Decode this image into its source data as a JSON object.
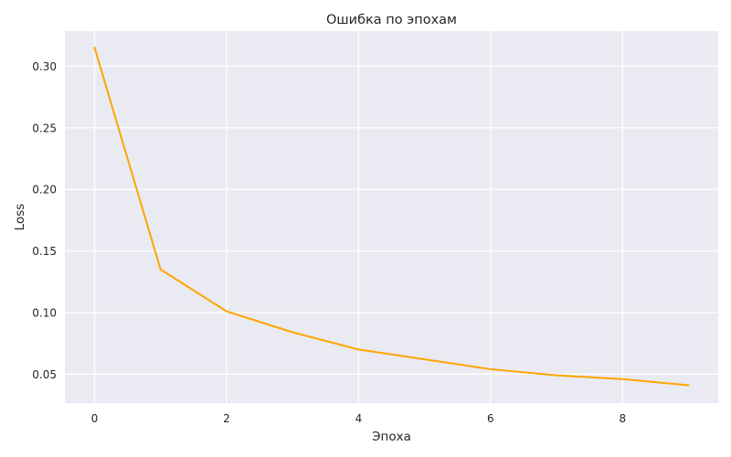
{
  "chart_data": {
    "type": "line",
    "title": "Ошибка по эпохам",
    "xlabel": "Эпоха",
    "ylabel": "Loss",
    "x": [
      0,
      1,
      2,
      3,
      4,
      5,
      6,
      7,
      8,
      9
    ],
    "series": [
      {
        "values": [
          0.315,
          0.135,
          0.101,
          0.084,
          0.07,
          0.062,
          0.054,
          0.049,
          0.046,
          0.041
        ]
      }
    ],
    "xlim": [
      -0.45,
      9.45
    ],
    "ylim": [
      0.0265,
      0.3285
    ],
    "xticks": [
      0,
      2,
      4,
      6,
      8
    ],
    "xtick_labels": [
      "0",
      "2",
      "4",
      "6",
      "8"
    ],
    "yticks": [
      0.05,
      0.1,
      0.15,
      0.2,
      0.25,
      0.3
    ],
    "ytick_labels": [
      "0.05",
      "0.10",
      "0.15",
      "0.20",
      "0.25",
      "0.30"
    ],
    "grid": true,
    "legend": "none",
    "colors": {
      "line": "#ffa500",
      "plot_background": "#eaeaf2",
      "grid": "#ffffff"
    }
  }
}
